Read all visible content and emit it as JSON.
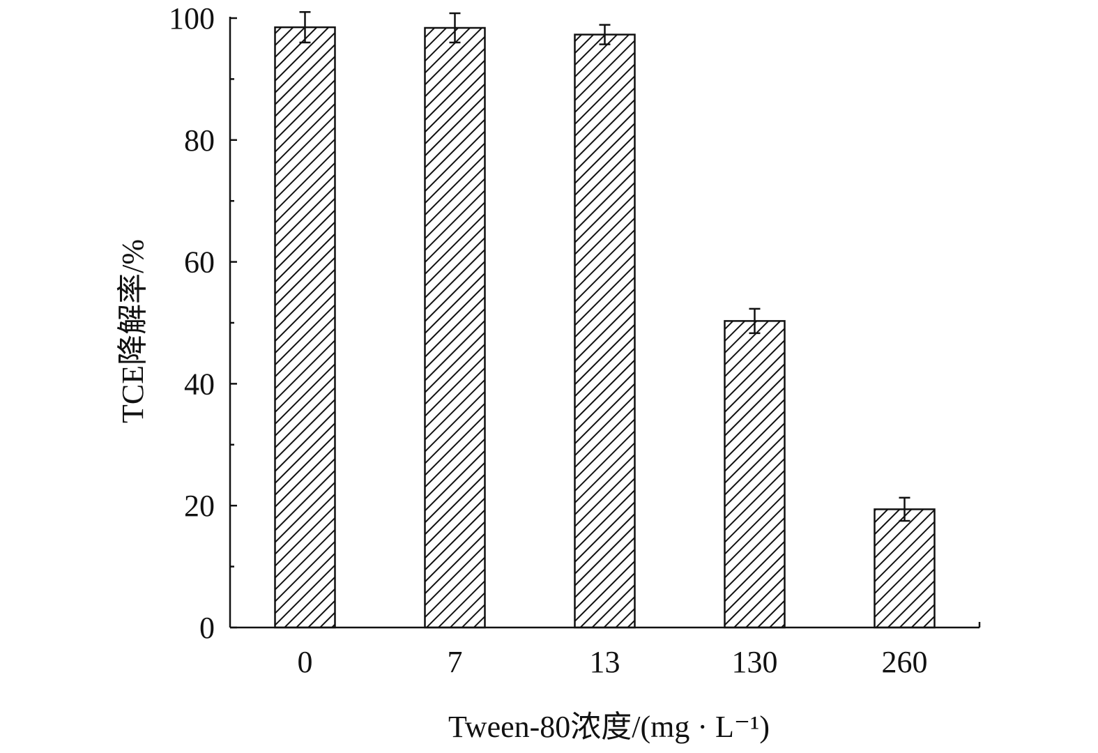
{
  "chart_data": {
    "type": "bar",
    "categories": [
      "0",
      "7",
      "13",
      "130",
      "260"
    ],
    "values": [
      98.5,
      98.4,
      97.3,
      50.3,
      19.4
    ],
    "errors": [
      2.5,
      2.4,
      1.6,
      2.0,
      1.9
    ],
    "title": "",
    "xlabel": "Tween-80浓度/(mg · L⁻¹)",
    "ylabel": "TCE降解率/%",
    "ylim": [
      0,
      100
    ],
    "yticks": [
      0,
      20,
      40,
      60,
      80,
      100
    ],
    "grid": false,
    "legend": "none",
    "bar_fill": "hatched diagonal",
    "colors": {
      "bar_stroke": "#111111",
      "hatch": "#111111",
      "axis": "#111111"
    }
  }
}
